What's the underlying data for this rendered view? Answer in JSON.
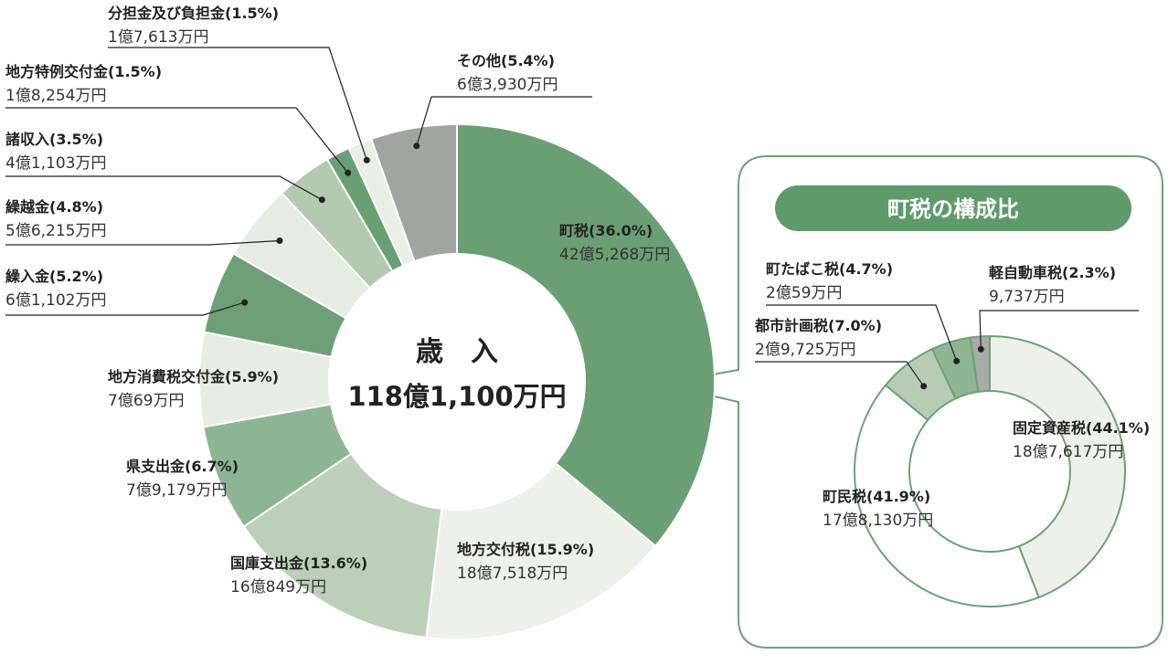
{
  "colors": {
    "border": "#6aa374",
    "pill": "#5f9a6a",
    "leader": "#222222"
  },
  "chart_data": [
    {
      "type": "pie",
      "title": "歳　入",
      "total_label": "118億1,100万円",
      "series": [
        {
          "label": "町税",
          "pct": "(36.0%)",
          "amount": "42億5,268万円",
          "value": 36.0,
          "color": "#6a9f74"
        },
        {
          "label": "地方交付税",
          "pct": "(15.9%)",
          "amount": "18億7,518万円",
          "value": 15.9,
          "color": "#eef1ea"
        },
        {
          "label": "国庫支出金",
          "pct": "(13.6%)",
          "amount": "16億849万円",
          "value": 13.6,
          "color": "#bccfb9"
        },
        {
          "label": "県支出金",
          "pct": "(6.7%)",
          "amount": "7億9,179万円",
          "value": 6.7,
          "color": "#8db593"
        },
        {
          "label": "地方消費税交付金",
          "pct": "(5.9%)",
          "amount": "7億69万円",
          "value": 5.9,
          "color": "#e8ede3"
        },
        {
          "label": "繰入金",
          "pct": "(5.2%)",
          "amount": "6億1,102万円",
          "value": 5.2,
          "color": "#6f9f77"
        },
        {
          "label": "繰越金",
          "pct": "(4.8%)",
          "amount": "5億6,215万円",
          "value": 4.8,
          "color": "#e6ece2"
        },
        {
          "label": "諸収入",
          "pct": "(3.5%)",
          "amount": "4億1,103万円",
          "value": 3.5,
          "color": "#b3c9b0"
        },
        {
          "label": "地方特例交付金",
          "pct": "(1.5%)",
          "amount": "1億8,254万円",
          "value": 1.5,
          "color": "#6a9f74"
        },
        {
          "label": "分担金及び負担金",
          "pct": "(1.5%)",
          "amount": "1億7,613万円",
          "value": 1.5,
          "color": "#eaeee6"
        },
        {
          "label": "その他",
          "pct": "(5.4%)",
          "amount": "6億3,930万円",
          "value": 5.4,
          "color": "#a2a4a2"
        }
      ]
    },
    {
      "type": "pie",
      "title": "町税の構成比",
      "series": [
        {
          "label": "固定資産税",
          "pct": "(44.1%)",
          "amount": "18億7,617万円",
          "value": 44.1,
          "color": "#eef1ea"
        },
        {
          "label": "町民税",
          "pct": "(41.9%)",
          "amount": "17億8,130万円",
          "value": 41.9,
          "color": "#ffffff"
        },
        {
          "label": "都市計画税",
          "pct": "(7.0%)",
          "amount": "2億9,725万円",
          "value": 7.0,
          "color": "#b8ccb5"
        },
        {
          "label": "町たばこ税",
          "pct": "(4.7%)",
          "amount": "2億59万円",
          "value": 4.7,
          "color": "#8fb595"
        },
        {
          "label": "軽自動車税",
          "pct": "(2.3%)",
          "amount": "9,737万円",
          "value": 2.3,
          "color": "#a9aba9"
        }
      ]
    }
  ]
}
